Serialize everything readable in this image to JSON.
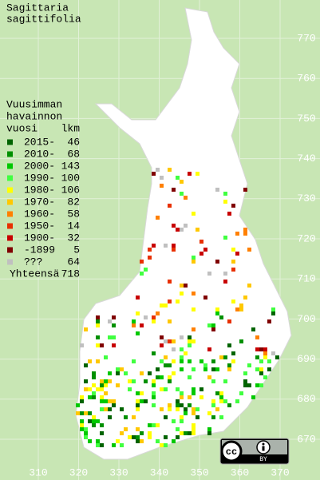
{
  "title": [
    "Sagittaria",
    "sagittifolia"
  ],
  "legend": {
    "header": [
      "Vuusimman",
      "havainnon"
    ],
    "year_label": "vuosi",
    "count_label": "lkm",
    "items": [
      {
        "label": "2015-",
        "count": "46",
        "color": "#006400"
      },
      {
        "label": "2010-",
        "count": "68",
        "color": "#009000"
      },
      {
        "label": "2000-",
        "count": "143",
        "color": "#00c800"
      },
      {
        "label": "1990-",
        "count": "100",
        "color": "#40ff40"
      },
      {
        "label": "1980-",
        "count": "106",
        "color": "#ffff00"
      },
      {
        "label": "1970-",
        "count": "82",
        "color": "#ffc800"
      },
      {
        "label": "1960-",
        "count": "58",
        "color": "#ff8000"
      },
      {
        "label": "1950-",
        "count": "14",
        "color": "#e83000"
      },
      {
        "label": "1900-",
        "count": "32",
        "color": "#c80000"
      },
      {
        "label": "-1899",
        "count": "5",
        "color": "#800000"
      },
      {
        "label": "???",
        "count": "64",
        "color": "#c0c0c0"
      }
    ],
    "total_label": "Yhteensä",
    "total": "718"
  },
  "x_labels": [
    "310",
    "320",
    "330",
    "340",
    "350",
    "360",
    "370"
  ],
  "y_labels": [
    "770",
    "760",
    "750",
    "740",
    "730",
    "720",
    "710",
    "700",
    "690",
    "680",
    "670"
  ],
  "badge": {
    "logo": "cc",
    "text": "BY"
  }
}
